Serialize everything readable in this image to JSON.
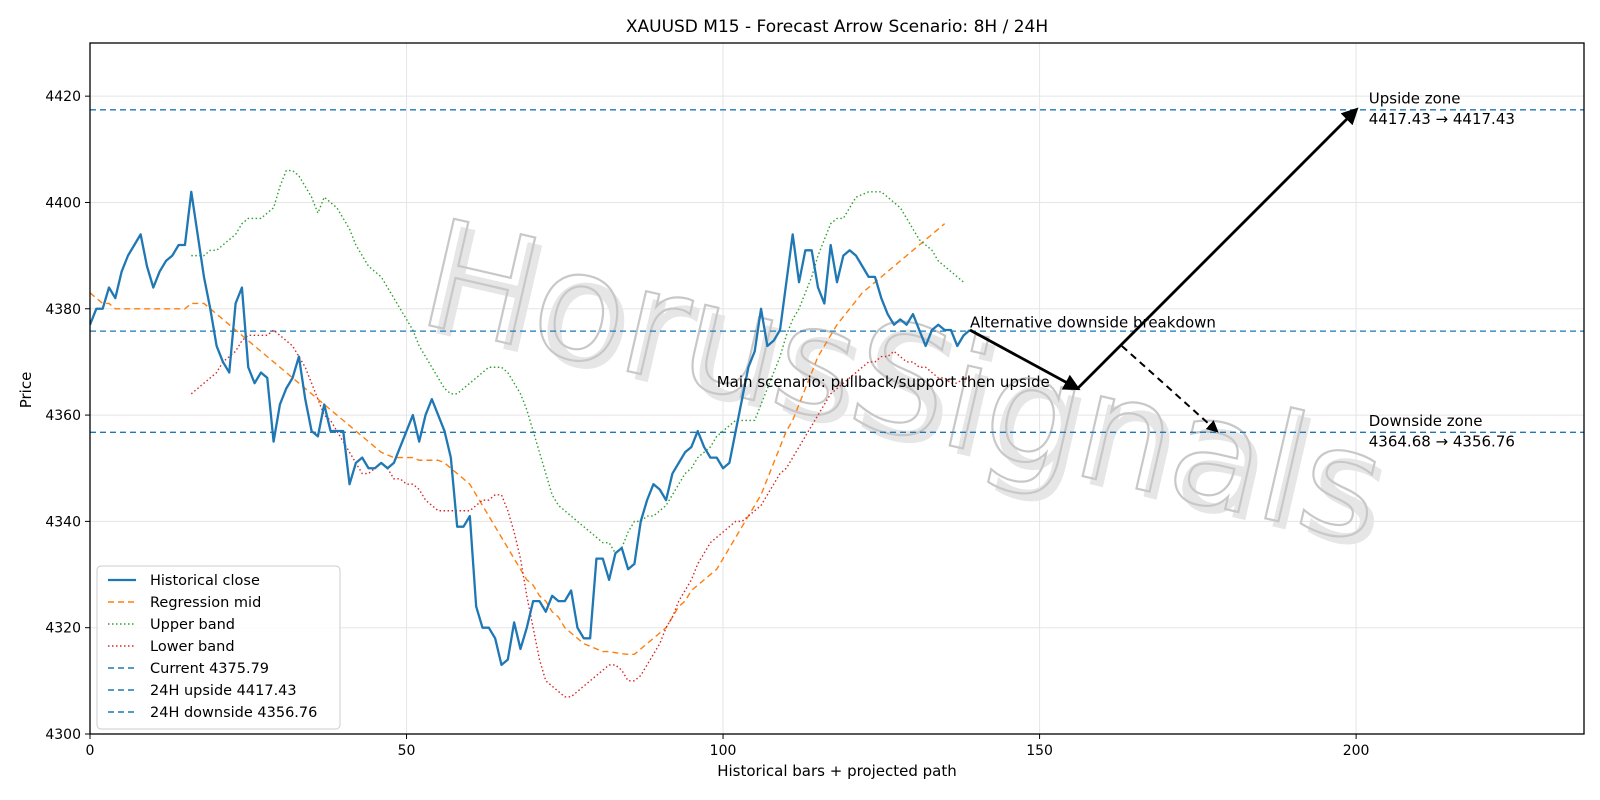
{
  "chart_data": {
    "type": "line",
    "title": "XAUUSD M15 - Forecast Arrow Scenario: 8H / 24H",
    "xlabel": "Historical bars + projected path",
    "ylabel": "Price",
    "xlim": [
      0,
      236
    ],
    "ylim": [
      4300,
      4430
    ],
    "xticks": [
      0,
      50,
      100,
      150,
      200
    ],
    "yticks": [
      4300,
      4320,
      4340,
      4360,
      4380,
      4400,
      4420
    ],
    "grid": true,
    "legend_position": "lower-left",
    "watermark": "HorusSignals",
    "series": [
      {
        "name": "Historical close",
        "style": "solid",
        "color": "#1f77b4",
        "values": [
          4377,
          4380,
          4380,
          4384,
          4382,
          4387,
          4390,
          4392,
          4394,
          4388,
          4384,
          4387,
          4389,
          4390,
          4392,
          4392,
          4402,
          4394,
          4386,
          4380,
          4373,
          4370,
          4368,
          4381,
          4384,
          4369,
          4366,
          4368,
          4367,
          4355,
          4362,
          4365,
          4367,
          4371,
          4363,
          4357,
          4356,
          4362,
          4357,
          4357,
          4357,
          4347,
          4351,
          4352,
          4350,
          4350,
          4351,
          4350,
          4351,
          4354,
          4357,
          4360,
          4355,
          4360,
          4363,
          4360,
          4357,
          4352,
          4339,
          4339,
          4341,
          4324,
          4320,
          4320,
          4318,
          4313,
          4314,
          4321,
          4316,
          4320,
          4325,
          4325,
          4323,
          4326,
          4325,
          4325,
          4327,
          4320,
          4318,
          4318,
          4333,
          4333,
          4329,
          4334,
          4335,
          4331,
          4332,
          4340,
          4344,
          4347,
          4346,
          4344,
          4349,
          4351,
          4353,
          4354,
          4357,
          4354,
          4352,
          4352,
          4350,
          4351,
          4357,
          4363,
          4369,
          4372,
          4380,
          4373,
          4374,
          4376,
          4385,
          4394,
          4385,
          4391,
          4391,
          4384,
          4381,
          4392,
          4385,
          4390,
          4391,
          4390,
          4388,
          4386,
          4386,
          4382,
          4379,
          4377,
          4378,
          4377,
          4379,
          4376,
          4373,
          4376,
          4377,
          4376,
          4376,
          4373,
          4375,
          4376
        ]
      },
      {
        "name": "Regression mid",
        "style": "dashed",
        "color": "#ff7f0e",
        "values": [
          4383,
          4382,
          4381,
          4381,
          4380,
          4380,
          4380,
          4380,
          4380,
          4380,
          4380,
          4380,
          4380,
          4380,
          4380,
          4380,
          4381,
          4381,
          4381,
          4380,
          4379,
          4378,
          4377,
          4376,
          4375,
          4374,
          4373,
          4372,
          4371,
          4370,
          4369,
          4368,
          4367,
          4366,
          4365,
          4364,
          4363,
          4362,
          4361,
          4360,
          4359,
          4358,
          4357,
          4356,
          4355,
          4354,
          4353,
          4352.5,
          4352,
          4352,
          4352,
          4352,
          4351.5,
          4351.5,
          4351.5,
          4351.5,
          4351,
          4350,
          4349,
          4348,
          4347,
          4345,
          4343,
          4341,
          4339,
          4337,
          4335,
          4333,
          4331,
          4329,
          4328,
          4326,
          4325,
          4323,
          4322,
          4320,
          4319,
          4318,
          4317,
          4316.5,
          4316,
          4315.5,
          4315.5,
          4315.3,
          4315.1,
          4315,
          4315,
          4316,
          4317,
          4318,
          4319,
          4320,
          4322,
          4324,
          4325,
          4327,
          4328,
          4329,
          4330,
          4331,
          4333,
          4335,
          4337,
          4339,
          4341,
          4343,
          4345,
          4348,
          4351,
          4354,
          4357,
          4359,
          4362,
          4365,
          4368,
          4371,
          4373,
          4375,
          4377,
          4378.5,
          4380,
          4381.5,
          4383,
          4384,
          4385,
          4386,
          4387,
          4388,
          4389,
          4390,
          4391,
          4392,
          4393,
          4394,
          4395,
          4396
        ]
      },
      {
        "name": "Upper band",
        "style": "dotted",
        "color": "#2ca02c",
        "values": [
          4390,
          4390,
          4390,
          4391,
          4391,
          4392,
          4393,
          4394,
          4396,
          4397,
          4397,
          4397,
          4398,
          4399,
          4403,
          4406,
          4406,
          4405,
          4403,
          4401,
          4398,
          4401,
          4400,
          4399,
          4397,
          4395,
          4392,
          4390,
          4388,
          4387,
          4386,
          4384,
          4382,
          4380,
          4378,
          4376,
          4373,
          4371,
          4369,
          4367,
          4365,
          4364,
          4364,
          4365,
          4366,
          4367,
          4368,
          4369,
          4369,
          4369,
          4368,
          4366,
          4364,
          4361,
          4357,
          4353,
          4349,
          4345,
          4343,
          4342,
          4341,
          4340,
          4339,
          4338,
          4337,
          4336,
          4336,
          4334,
          4335,
          4338,
          4340,
          4340,
          4341,
          4341,
          4342,
          4343,
          4345,
          4347,
          4349,
          4350,
          4352,
          4353,
          4354,
          4356,
          4357,
          4358,
          4359,
          4359,
          4359,
          4359,
          4362,
          4365,
          4368,
          4371,
          4375,
          4378,
          4380,
          4383,
          4386,
          4390,
          4393,
          4396,
          4397,
          4397,
          4399,
          4401,
          4401.5,
          4402,
          4402,
          4402,
          4401,
          4400,
          4399,
          4397,
          4395,
          4393,
          4392,
          4391,
          4389,
          4388,
          4387,
          4386,
          4385
        ]
      },
      {
        "name": "Lower band",
        "style": "dotted",
        "color": "#d62728",
        "values": [
          4364,
          4365,
          4366,
          4367,
          4368,
          4370,
          4371,
          4372,
          4374,
          4375,
          4375,
          4375,
          4375,
          4376,
          4375,
          4374,
          4373,
          4371,
          4369,
          4366,
          4363,
          4360,
          4359,
          4357,
          4355,
          4353,
          4351,
          4349,
          4349,
          4350,
          4351,
          4350,
          4348,
          4348,
          4347,
          4347,
          4346,
          4344,
          4343,
          4342,
          4342,
          4342,
          4342,
          4342,
          4342,
          4343,
          4344,
          4344,
          4345,
          4345,
          4342,
          4338,
          4333,
          4326,
          4320,
          4314,
          4310,
          4309,
          4308,
          4307,
          4307,
          4308,
          4309,
          4310,
          4311,
          4312,
          4313,
          4313,
          4312,
          4310,
          4310,
          4311,
          4313,
          4315,
          4317,
          4320,
          4322,
          4325,
          4327,
          4329,
          4332,
          4334,
          4336,
          4337,
          4338,
          4339,
          4340,
          4340,
          4341,
          4342,
          4343,
          4345,
          4347,
          4349,
          4350,
          4352,
          4354,
          4356,
          4358,
          4360,
          4362,
          4364,
          4365,
          4366,
          4367,
          4368,
          4369,
          4370,
          4370,
          4371,
          4371,
          4372,
          4371,
          4370,
          4370,
          4369,
          4369,
          4368,
          4367,
          4367,
          4366,
          4366,
          4367,
          4367
        ]
      }
    ],
    "series_starts": {
      "Historical close": 0,
      "Regression mid": 0,
      "Upper band": 16,
      "Lower band": 16
    },
    "horizontal_lines": [
      {
        "name": "Current 4375.79",
        "y": 4375.79,
        "color": "#1f77b4",
        "style": "dashed"
      },
      {
        "name": "24H upside 4417.43",
        "y": 4417.43,
        "color": "#1f77b4",
        "style": "dashed"
      },
      {
        "name": "24H downside 4356.76",
        "y": 4356.76,
        "color": "#1f77b4",
        "style": "dashed"
      }
    ],
    "arrows": [
      {
        "name": "main-leg-1",
        "from": [
          139,
          4376
        ],
        "to": [
          156,
          4365
        ],
        "style": "solid"
      },
      {
        "name": "main-leg-2",
        "from": [
          156,
          4365
        ],
        "to": [
          200,
          4417.43
        ],
        "style": "solid"
      },
      {
        "name": "alternative",
        "from": [
          163,
          4373
        ],
        "to": [
          178,
          4357
        ],
        "style": "dashed"
      }
    ],
    "annotations": [
      {
        "name": "upside-zone-title",
        "text": "Upside zone",
        "x": 202,
        "y": 4418.6
      },
      {
        "name": "upside-zone-range",
        "text": "4417.43 → 4417.43",
        "x": 202,
        "y": 4414.8
      },
      {
        "name": "downside-zone-title",
        "text": "Downside zone",
        "x": 202,
        "y": 4357.9
      },
      {
        "name": "downside-zone-range",
        "text": "4364.68 → 4356.76",
        "x": 202,
        "y": 4354.1
      },
      {
        "name": "alt-scenario-label",
        "text": "Alternative downside breakdown",
        "x": 139,
        "y": 4376.5
      },
      {
        "name": "main-scenario-label",
        "text": "Main scenario: pullback/support then upside",
        "x": 99,
        "y": 4365.3
      }
    ],
    "legend": [
      "Historical close",
      "Regression mid",
      "Upper band",
      "Lower band",
      "Current 4375.79",
      "24H upside 4417.43",
      "24H downside 4356.76"
    ]
  }
}
